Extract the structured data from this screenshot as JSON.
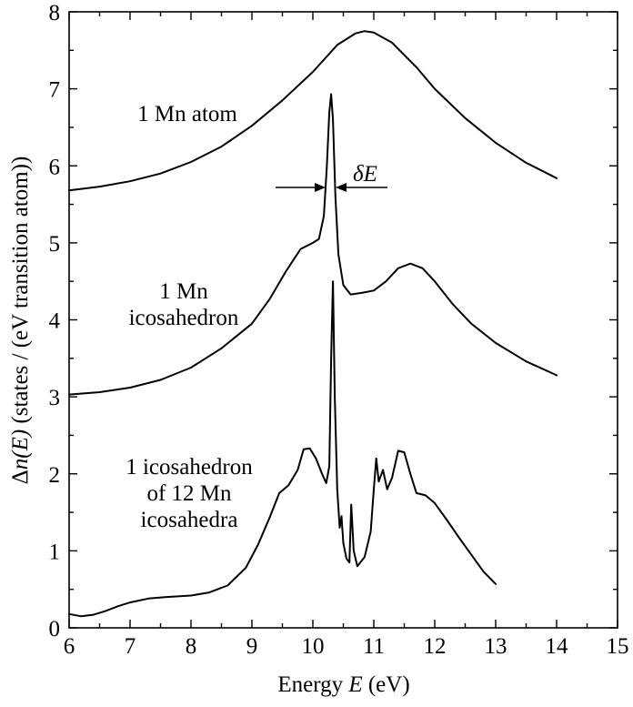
{
  "chart_data": {
    "type": "line",
    "xlabel_prefix": "Energy ",
    "xlabel_var": "E",
    "xlabel_unit": " (eV)",
    "ylabel_prefix": "Δ",
    "ylabel_var": "n(E)",
    "ylabel_unit": " (states / (eV transition atom))",
    "xlim": [
      6,
      15
    ],
    "ylim": [
      0,
      8
    ],
    "x_ticks": [
      "6",
      "7",
      "8",
      "9",
      "10",
      "11",
      "12",
      "13",
      "14",
      "15"
    ],
    "y_ticks": [
      "0",
      "1",
      "2",
      "3",
      "4",
      "5",
      "6",
      "7",
      "8"
    ],
    "grid": false,
    "series": [
      {
        "labels": [
          "1 Mn atom"
        ],
        "points": [
          [
            6.0,
            5.68
          ],
          [
            6.5,
            5.73
          ],
          [
            7.0,
            5.8
          ],
          [
            7.5,
            5.9
          ],
          [
            8.0,
            6.05
          ],
          [
            8.5,
            6.25
          ],
          [
            9.0,
            6.52
          ],
          [
            9.5,
            6.85
          ],
          [
            10.0,
            7.22
          ],
          [
            10.4,
            7.57
          ],
          [
            10.7,
            7.72
          ],
          [
            10.85,
            7.75
          ],
          [
            11.0,
            7.73
          ],
          [
            11.3,
            7.6
          ],
          [
            11.7,
            7.28
          ],
          [
            12.0,
            7.0
          ],
          [
            12.5,
            6.62
          ],
          [
            13.0,
            6.3
          ],
          [
            13.5,
            6.04
          ],
          [
            14.0,
            5.84
          ]
        ]
      },
      {
        "labels": [
          "1 Mn",
          "icosahedron"
        ],
        "points": [
          [
            6.0,
            3.03
          ],
          [
            6.5,
            3.06
          ],
          [
            7.0,
            3.12
          ],
          [
            7.5,
            3.22
          ],
          [
            8.0,
            3.38
          ],
          [
            8.5,
            3.63
          ],
          [
            9.0,
            3.95
          ],
          [
            9.3,
            4.28
          ],
          [
            9.55,
            4.62
          ],
          [
            9.8,
            4.92
          ],
          [
            10.0,
            5.0
          ],
          [
            10.1,
            5.05
          ],
          [
            10.18,
            5.35
          ],
          [
            10.23,
            6.0
          ],
          [
            10.27,
            6.7
          ],
          [
            10.3,
            6.93
          ],
          [
            10.33,
            6.6
          ],
          [
            10.37,
            5.6
          ],
          [
            10.42,
            4.85
          ],
          [
            10.5,
            4.45
          ],
          [
            10.62,
            4.33
          ],
          [
            10.8,
            4.35
          ],
          [
            11.0,
            4.38
          ],
          [
            11.2,
            4.5
          ],
          [
            11.4,
            4.67
          ],
          [
            11.6,
            4.73
          ],
          [
            11.8,
            4.67
          ],
          [
            12.0,
            4.5
          ],
          [
            12.3,
            4.2
          ],
          [
            12.6,
            3.95
          ],
          [
            13.0,
            3.7
          ],
          [
            13.5,
            3.46
          ],
          [
            14.0,
            3.28
          ]
        ]
      },
      {
        "labels": [
          "1 icosahedron",
          "of 12 Mn",
          "icosahedra"
        ],
        "points": [
          [
            6.0,
            0.18
          ],
          [
            6.2,
            0.15
          ],
          [
            6.4,
            0.17
          ],
          [
            6.6,
            0.22
          ],
          [
            6.8,
            0.28
          ],
          [
            7.0,
            0.33
          ],
          [
            7.3,
            0.38
          ],
          [
            7.6,
            0.4
          ],
          [
            8.0,
            0.42
          ],
          [
            8.3,
            0.46
          ],
          [
            8.6,
            0.55
          ],
          [
            8.9,
            0.78
          ],
          [
            9.1,
            1.08
          ],
          [
            9.3,
            1.45
          ],
          [
            9.45,
            1.75
          ],
          [
            9.6,
            1.85
          ],
          [
            9.75,
            2.05
          ],
          [
            9.85,
            2.32
          ],
          [
            9.95,
            2.33
          ],
          [
            10.05,
            2.2
          ],
          [
            10.15,
            2.0
          ],
          [
            10.22,
            1.88
          ],
          [
            10.27,
            2.1
          ],
          [
            10.3,
            3.5
          ],
          [
            10.33,
            4.5
          ],
          [
            10.36,
            3.0
          ],
          [
            10.4,
            1.8
          ],
          [
            10.44,
            1.3
          ],
          [
            10.47,
            1.45
          ],
          [
            10.5,
            1.1
          ],
          [
            10.55,
            0.9
          ],
          [
            10.6,
            0.85
          ],
          [
            10.63,
            1.6
          ],
          [
            10.67,
            1.0
          ],
          [
            10.73,
            0.8
          ],
          [
            10.85,
            0.92
          ],
          [
            10.95,
            1.25
          ],
          [
            11.0,
            1.8
          ],
          [
            11.04,
            2.2
          ],
          [
            11.08,
            1.9
          ],
          [
            11.15,
            2.05
          ],
          [
            11.22,
            1.8
          ],
          [
            11.3,
            1.95
          ],
          [
            11.4,
            2.3
          ],
          [
            11.5,
            2.28
          ],
          [
            11.6,
            2.0
          ],
          [
            11.7,
            1.75
          ],
          [
            11.85,
            1.72
          ],
          [
            12.0,
            1.62
          ],
          [
            12.2,
            1.4
          ],
          [
            12.4,
            1.17
          ],
          [
            12.6,
            0.95
          ],
          [
            12.8,
            0.73
          ],
          [
            13.0,
            0.57
          ]
        ]
      }
    ],
    "annotations": [
      {
        "text": "δE",
        "x": 10.35,
        "y": 5.8
      }
    ]
  }
}
